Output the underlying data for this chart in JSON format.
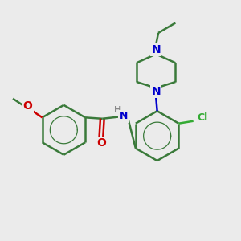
{
  "background_color": "#ebebeb",
  "bond_color": "#3a7a3a",
  "nitrogen_color": "#0000cc",
  "oxygen_color": "#cc0000",
  "chlorine_color": "#33aa33",
  "hydrogen_color": "#888888",
  "bond_width": 1.8,
  "font_size": 9,
  "xlim": [
    0,
    10
  ],
  "ylim": [
    0,
    10
  ]
}
